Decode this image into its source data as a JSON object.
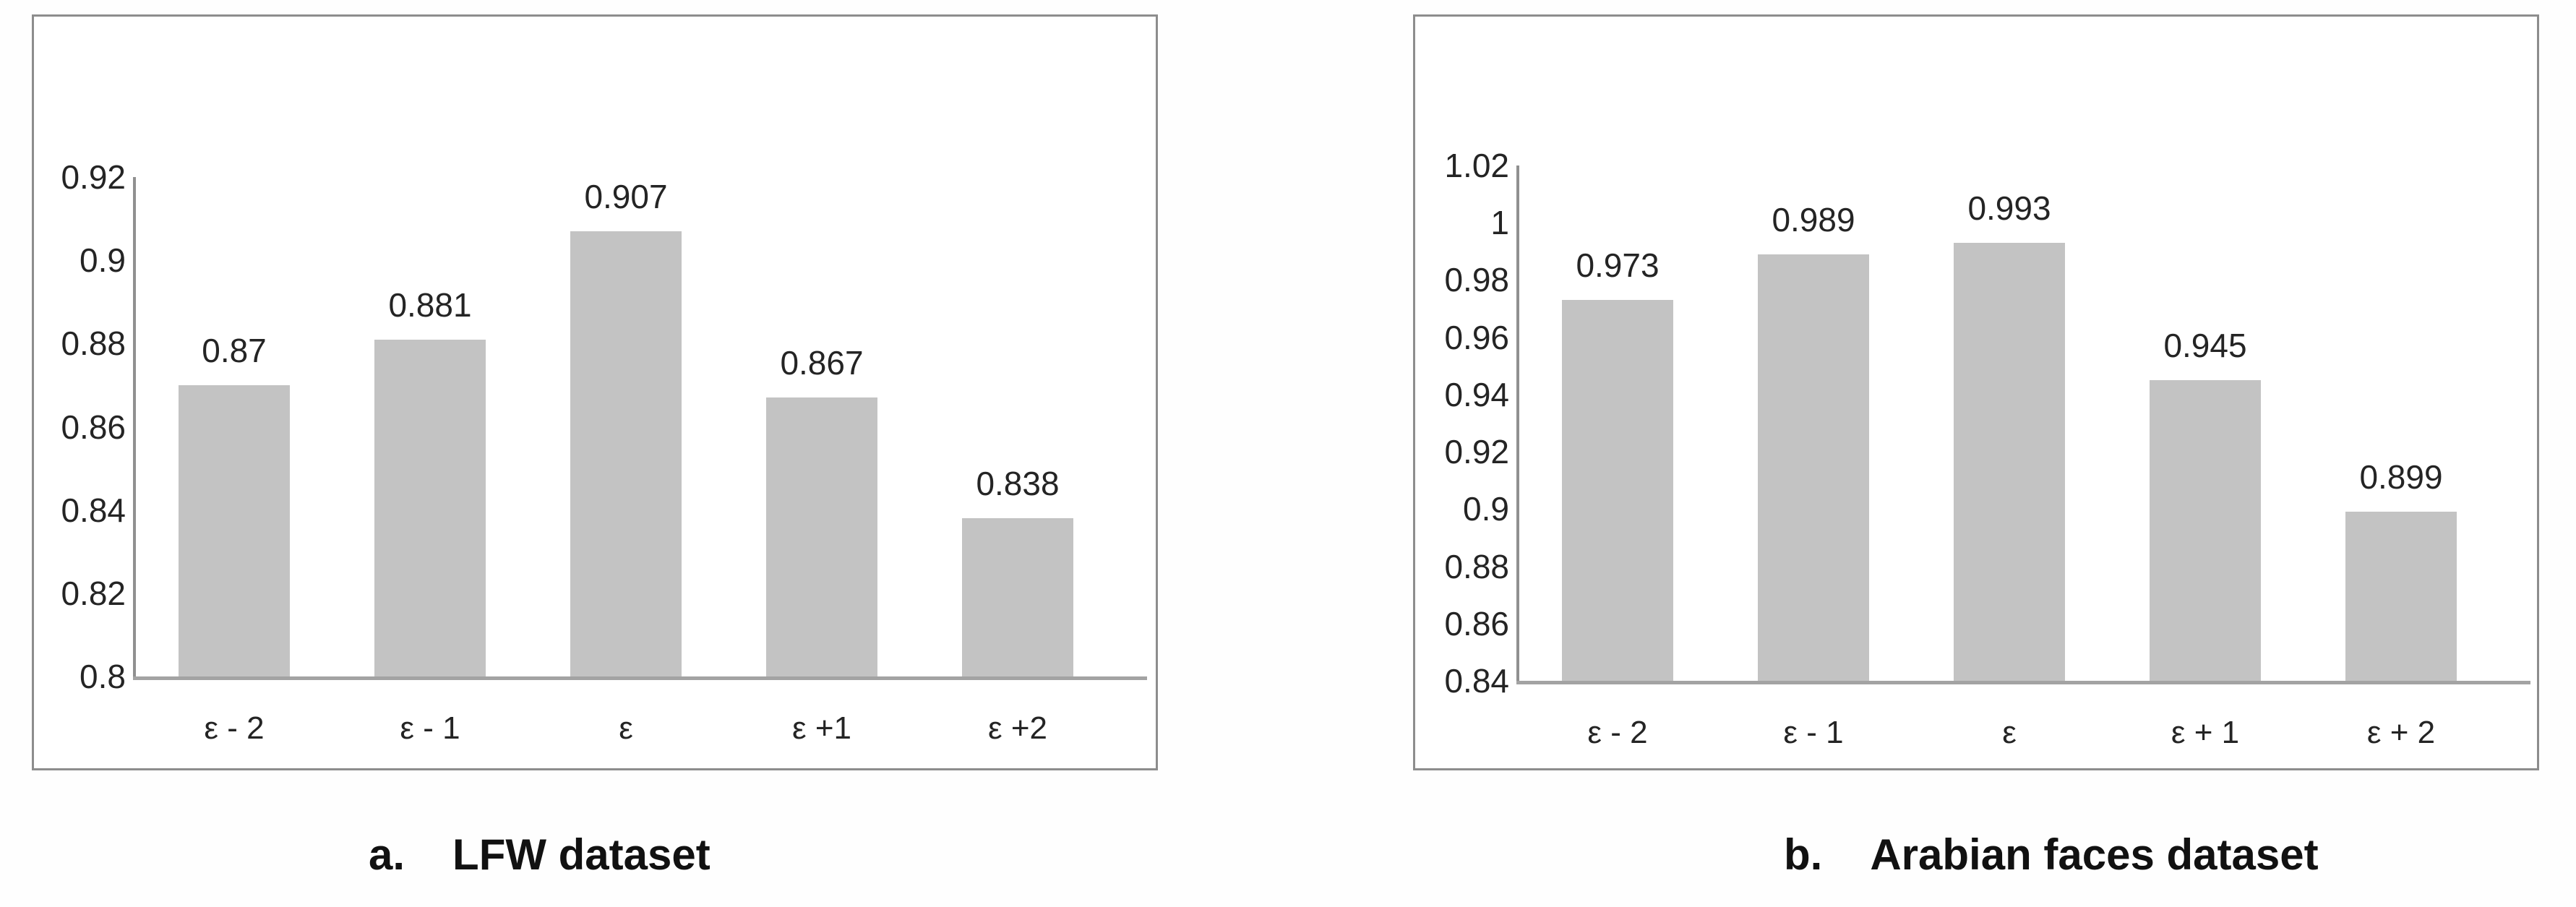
{
  "figure_type": "two-panel bar chart figure",
  "colors": {
    "bar_fill": "#c3c3c3",
    "y_axis_line": "#909090",
    "x_axis_line": "#a3a3a3",
    "panel_border": "#8d8d8d",
    "text": "#242424",
    "background": "#ffffff"
  },
  "chart_data": [
    {
      "type": "bar",
      "title": "",
      "caption_prefix": "a.",
      "caption_title": "LFW dataset",
      "xlabel": "",
      "ylabel": "",
      "categories": [
        "ε - 2",
        "ε - 1",
        "ε",
        "ε +1",
        "ε +2"
      ],
      "values": [
        0.87,
        0.881,
        0.907,
        0.867,
        0.838
      ],
      "value_labels": [
        "0.87",
        "0.881",
        "0.907",
        "0.867",
        "0.838"
      ],
      "ylim": [
        0.8,
        0.92
      ],
      "yticks": [
        {
          "v": 0.8,
          "label": "0.8"
        },
        {
          "v": 0.82,
          "label": "0.82"
        },
        {
          "v": 0.84,
          "label": "0.84"
        },
        {
          "v": 0.86,
          "label": "0.86"
        },
        {
          "v": 0.88,
          "label": "0.88"
        },
        {
          "v": 0.9,
          "label": "0.9"
        },
        {
          "v": 0.92,
          "label": "0.92"
        }
      ],
      "grid": false,
      "legend": null,
      "bar_color": "#c3c3c3"
    },
    {
      "type": "bar",
      "title": "",
      "caption_prefix": "b.",
      "caption_title": "Arabian faces dataset",
      "xlabel": "",
      "ylabel": "",
      "categories": [
        "ε - 2",
        "ε - 1",
        "ε",
        "ε + 1",
        "ε + 2"
      ],
      "values": [
        0.973,
        0.989,
        0.993,
        0.945,
        0.899
      ],
      "value_labels": [
        "0.973",
        "0.989",
        "0.993",
        "0.945",
        "0.899"
      ],
      "ylim": [
        0.84,
        1.02
      ],
      "yticks": [
        {
          "v": 0.84,
          "label": "0.84"
        },
        {
          "v": 0.86,
          "label": "0.86"
        },
        {
          "v": 0.88,
          "label": "0.88"
        },
        {
          "v": 0.9,
          "label": "0.9"
        },
        {
          "v": 0.92,
          "label": "0.92"
        },
        {
          "v": 0.94,
          "label": "0.94"
        },
        {
          "v": 0.96,
          "label": "0.96"
        },
        {
          "v": 0.98,
          "label": "0.98"
        },
        {
          "v": 1,
          "label": "1"
        },
        {
          "v": 1.02,
          "label": "1.02"
        }
      ],
      "grid": false,
      "legend": null,
      "bar_color": "#c3c3c3"
    }
  ]
}
